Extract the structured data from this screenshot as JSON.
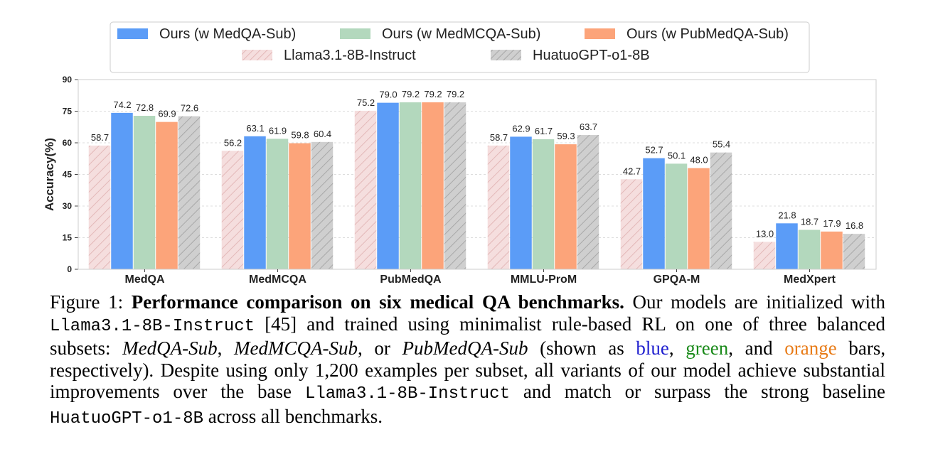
{
  "chart_data": {
    "type": "bar",
    "categories": [
      "MedQA",
      "MedMCQA",
      "PubMedQA",
      "MMLU-ProM",
      "GPQA-M",
      "MedXpert"
    ],
    "series": [
      {
        "name": "Llama3.1-8B-Instruct",
        "values": [
          58.7,
          56.2,
          75.2,
          58.7,
          42.7,
          13.0
        ],
        "color": "#f3d3d3",
        "hatch": true,
        "labels": [
          "58.7",
          "56.2",
          "75.2",
          "58.7",
          "42.7",
          "13.0"
        ]
      },
      {
        "name": "Ours (w MedQA-Sub)",
        "values": [
          74.2,
          63.1,
          79.0,
          62.9,
          52.7,
          21.8
        ],
        "color": "#5b9cf7",
        "hatch": false,
        "labels": [
          "74.2",
          "63.1",
          "79.0",
          "62.9",
          "52.7",
          "21.8"
        ]
      },
      {
        "name": "Ours (w MedMCQA-Sub)",
        "values": [
          72.8,
          61.9,
          79.2,
          61.7,
          50.1,
          18.7
        ],
        "color": "#b3d8bd",
        "hatch": false,
        "labels": [
          "72.8",
          "61.9",
          "79.2",
          "61.7",
          "50.1",
          "18.7"
        ]
      },
      {
        "name": "Ours (w PubMedQA-Sub)",
        "values": [
          69.9,
          59.8,
          79.2,
          59.3,
          48.0,
          17.9
        ],
        "color": "#fca47a",
        "hatch": false,
        "labels": [
          "69.9",
          "59.8",
          "79.2",
          "59.3",
          "48.0",
          "17.9"
        ]
      },
      {
        "name": "HuatuoGPT-o1-8B",
        "values": [
          72.6,
          60.4,
          79.2,
          63.7,
          55.4,
          16.8
        ],
        "color": "#c8c8c8",
        "hatch": true,
        "labels": [
          "72.6",
          "60.4",
          "79.2",
          "63.7",
          "55.4",
          "16.8"
        ]
      }
    ],
    "legend_order": [
      1,
      2,
      3,
      0,
      4
    ],
    "legend_position": "top",
    "ylabel": "Accuracy(%)",
    "xlabel": "",
    "ylim": [
      0,
      90
    ],
    "yticks": [
      0,
      15,
      30,
      45,
      60,
      75,
      90
    ],
    "ytick_labels": [
      "0",
      "15",
      "30",
      "45",
      "60",
      "75",
      "90"
    ],
    "grid": "horizontal dashed"
  },
  "caption": {
    "fig_label": "Figure 1:",
    "title": "Performance comparison on six medical QA benchmarks.",
    "t1": "Our models are initialized with",
    "model1": "Llama3.1-8B-Instruct",
    "t2": "[45] and trained using minimalist rule-based RL on one of three balanced subsets:",
    "sub1": "MedQA-Sub",
    "t3": ",",
    "sub2": "MedMCQA-Sub",
    "t4": ", or",
    "sub3": "PubMedQA-Sub",
    "t5": "(shown as",
    "blue": "blue",
    "t6": ",",
    "green": "green",
    "t7": ", and",
    "orange": "orange",
    "t8": "bars, respectively). Despite using only 1,200 examples per subset, all variants of our model achieve substantial improvements over the base",
    "model2": "Llama3.1-8B-Instruct",
    "t9": "and match or surpass the strong baseline",
    "model3": "HuatuoGPT-o1-8B",
    "t10": "across all benchmarks."
  }
}
